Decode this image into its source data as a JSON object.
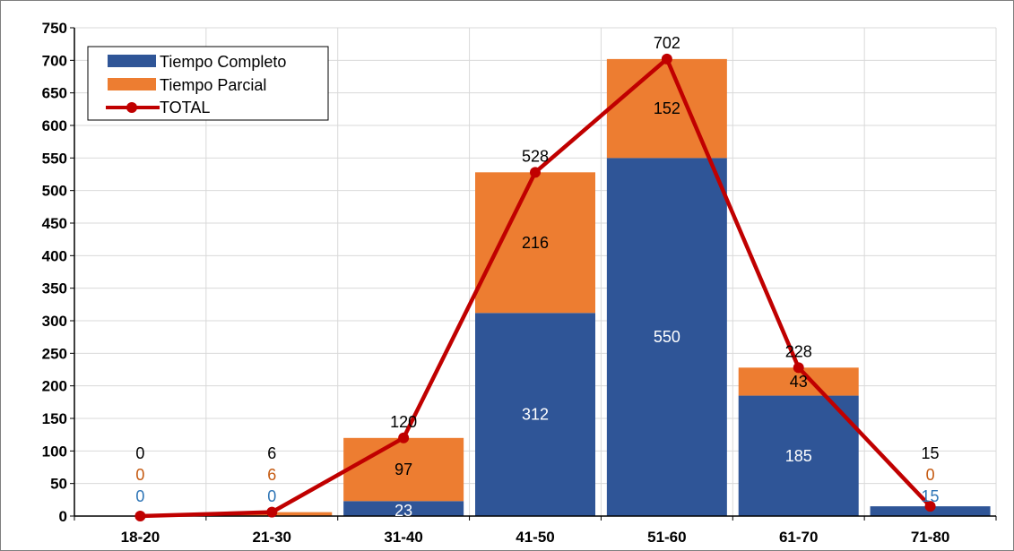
{
  "chart_data": {
    "type": "bar",
    "stacked": true,
    "categories": [
      "18-20",
      "21-30",
      "31-40",
      "41-50",
      "51-60",
      "61-70",
      "71-80"
    ],
    "series": [
      {
        "name": "Tiempo Completo",
        "kind": "bar",
        "color": "#2F5597",
        "values": [
          0,
          0,
          23,
          312,
          550,
          185,
          15
        ],
        "label_colors": [
          "#2E75B6",
          "#2E75B6",
          "#ffffff",
          "#ffffff",
          "#ffffff",
          "#ffffff",
          "#2E75B6"
        ]
      },
      {
        "name": "Tiempo Parcial",
        "kind": "bar",
        "color": "#ED7D31",
        "values": [
          0,
          6,
          97,
          216,
          152,
          43,
          0
        ],
        "label_colors": [
          "#C55A11",
          "#C55A11",
          "#000000",
          "#000000",
          "#000000",
          "#000000",
          "#C55A11"
        ]
      },
      {
        "name": "TOTAL",
        "kind": "line",
        "color": "#C00000",
        "values": [
          0,
          6,
          120,
          528,
          702,
          228,
          15
        ],
        "label_colors": [
          "#000000",
          "#000000",
          "#000000",
          "#000000",
          "#000000",
          "#000000",
          "#000000"
        ]
      }
    ],
    "ylim": [
      0,
      750
    ],
    "yticks": [
      0,
      50,
      100,
      150,
      200,
      250,
      300,
      350,
      400,
      450,
      500,
      550,
      600,
      650,
      700,
      750
    ],
    "grid": true,
    "legend_position": "top-left",
    "title": "",
    "xlabel": "",
    "ylabel": ""
  }
}
